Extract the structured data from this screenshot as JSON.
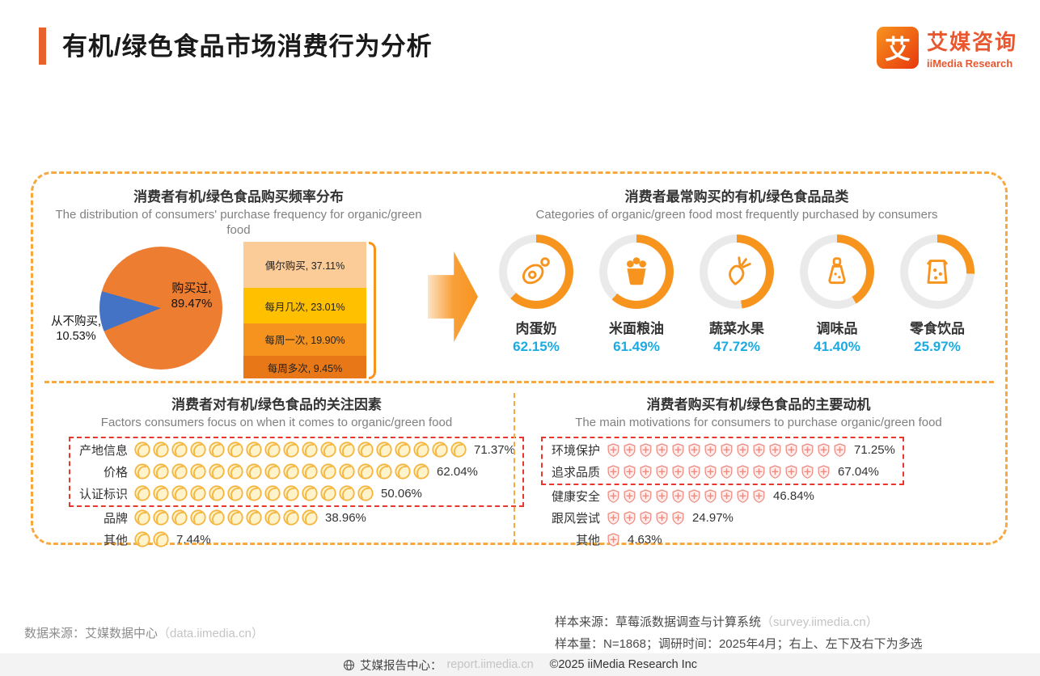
{
  "page": {
    "title": "有机/绿色食品市场消费行为分析",
    "logo": {
      "mark": "艾",
      "brand_cn": "艾媒咨询",
      "brand_en": "iiMedia Research"
    }
  },
  "colors": {
    "accent_orange": "#E8632C",
    "dashed_border_orange": "#F7A940",
    "donut_orange": "#F7941E",
    "donut_track": "#EAEAEA",
    "value_cyan": "#1BAAE1",
    "pie_purchased": "#ED7D31",
    "pie_never": "#4472C4",
    "highlight_red": "#E8372C",
    "coin_gold": "#F5B63F",
    "shield_red": "#EE8B80"
  },
  "frequency": {
    "title_cn": "消费者有机/绿色食品购买频率分布",
    "title_en": "The distribution of consumers' purchase frequency for organic/green food",
    "pie": {
      "purchased_label": "购买过,",
      "purchased_value": "89.47%",
      "purchased_pct": 89.47,
      "never_label": "从不购买,",
      "never_value": "10.53%",
      "never_pct": 10.53
    },
    "breakdown": [
      {
        "label": "偶尔购买, 37.11%",
        "pct": 37.11,
        "color": "#FBCB98"
      },
      {
        "label": "每月几次, 23.01%",
        "pct": 23.01,
        "color": "#FFC000"
      },
      {
        "label": "每周一次, 19.90%",
        "pct": 19.9,
        "color": "#F6921E"
      },
      {
        "label": "每周多次, 9.45%",
        "pct": 9.45,
        "color": "#E87817"
      }
    ]
  },
  "categories": {
    "title_cn": "消费者最常购买的有机/绿色食品品类",
    "title_en": "Categories of organic/green food most frequently purchased by consumers",
    "items": [
      {
        "label": "肉蛋奶",
        "value": "62.15%",
        "pct": 62.15,
        "icon": "meat-icon"
      },
      {
        "label": "米面粮油",
        "value": "61.49%",
        "pct": 61.49,
        "icon": "grain-icon"
      },
      {
        "label": "蔬菜水果",
        "value": "47.72%",
        "pct": 47.72,
        "icon": "carrot-icon"
      },
      {
        "label": "调味品",
        "value": "41.40%",
        "pct": 41.4,
        "icon": "seasoning-icon"
      },
      {
        "label": "零食饮品",
        "value": "25.97%",
        "pct": 25.97,
        "icon": "snack-icon"
      }
    ]
  },
  "factors": {
    "title_cn": "消费者对有机/绿色食品的关注因素",
    "title_en": "Factors consumers focus on when it comes to organic/green food",
    "icon": "coin-icon",
    "highlight_count": 3,
    "rows": [
      {
        "label": "产地信息",
        "value": "71.37%",
        "pct": 71.37
      },
      {
        "label": "价格",
        "value": "62.04%",
        "pct": 62.04
      },
      {
        "label": "认证标识",
        "value": "50.06%",
        "pct": 50.06
      },
      {
        "label": "品牌",
        "value": "38.96%",
        "pct": 38.96
      },
      {
        "label": "其他",
        "value": "7.44%",
        "pct": 7.44
      }
    ]
  },
  "motivations": {
    "title_cn": "消费者购买有机/绿色食品的主要动机",
    "title_en": "The main motivations for consumers to purchase organic/green food",
    "icon": "shield-plus-icon",
    "highlight_count": 2,
    "rows": [
      {
        "label": "环境保护",
        "value": "71.25%",
        "pct": 71.25
      },
      {
        "label": "追求品质",
        "value": "67.04%",
        "pct": 67.04
      },
      {
        "label": "健康安全",
        "value": "46.84%",
        "pct": 46.84
      },
      {
        "label": "跟风尝试",
        "value": "24.97%",
        "pct": 24.97
      },
      {
        "label": "其他",
        "value": "4.63%",
        "pct": 4.63
      }
    ]
  },
  "footer": {
    "source_left": "数据来源：艾媒数据中心",
    "source_left_url": "（data.iimedia.cn）",
    "sample_source": "样本来源：草莓派数据调查与计算系统",
    "sample_source_url": "（survey.iimedia.cn）",
    "sample_info": "样本量：N=1868；调研时间：2025年4月；右上、左下及右下为多选",
    "report_center": "艾媒报告中心：",
    "report_center_url": "report.iimedia.cn",
    "copyright": "©2025  iiMedia Research Inc"
  },
  "chart_data": [
    {
      "type": "pie",
      "title": "消费者有机/绿色食品购买频率分布",
      "labels": [
        "购买过",
        "从不购买"
      ],
      "values": [
        89.47,
        10.53
      ],
      "colors": [
        "#ED7D31",
        "#4472C4"
      ],
      "breakdown": {
        "labels": [
          "偶尔购买",
          "每月几次",
          "每周一次",
          "每周多次"
        ],
        "values": [
          37.11,
          23.01,
          19.9,
          9.45
        ]
      }
    },
    {
      "type": "bar",
      "title": "消费者最常购买的有机/绿色食品品类",
      "categories": [
        "肉蛋奶",
        "米面粮油",
        "蔬菜水果",
        "调味品",
        "零食饮品"
      ],
      "values": [
        62.15,
        61.49,
        47.72,
        41.4,
        25.97
      ],
      "ylim": [
        0,
        100
      ],
      "ylabel": "%"
    },
    {
      "type": "bar",
      "title": "消费者对有机/绿色食品的关注因素",
      "categories": [
        "产地信息",
        "价格",
        "认证标识",
        "品牌",
        "其他"
      ],
      "values": [
        71.37,
        62.04,
        50.06,
        38.96,
        7.44
      ],
      "ylim": [
        0,
        100
      ],
      "ylabel": "%"
    },
    {
      "type": "bar",
      "title": "消费者购买有机/绿色食品的主要动机",
      "categories": [
        "环境保护",
        "追求品质",
        "健康安全",
        "跟风尝试",
        "其他"
      ],
      "values": [
        71.25,
        67.04,
        46.84,
        24.97,
        4.63
      ],
      "ylim": [
        0,
        100
      ],
      "ylabel": "%"
    }
  ]
}
